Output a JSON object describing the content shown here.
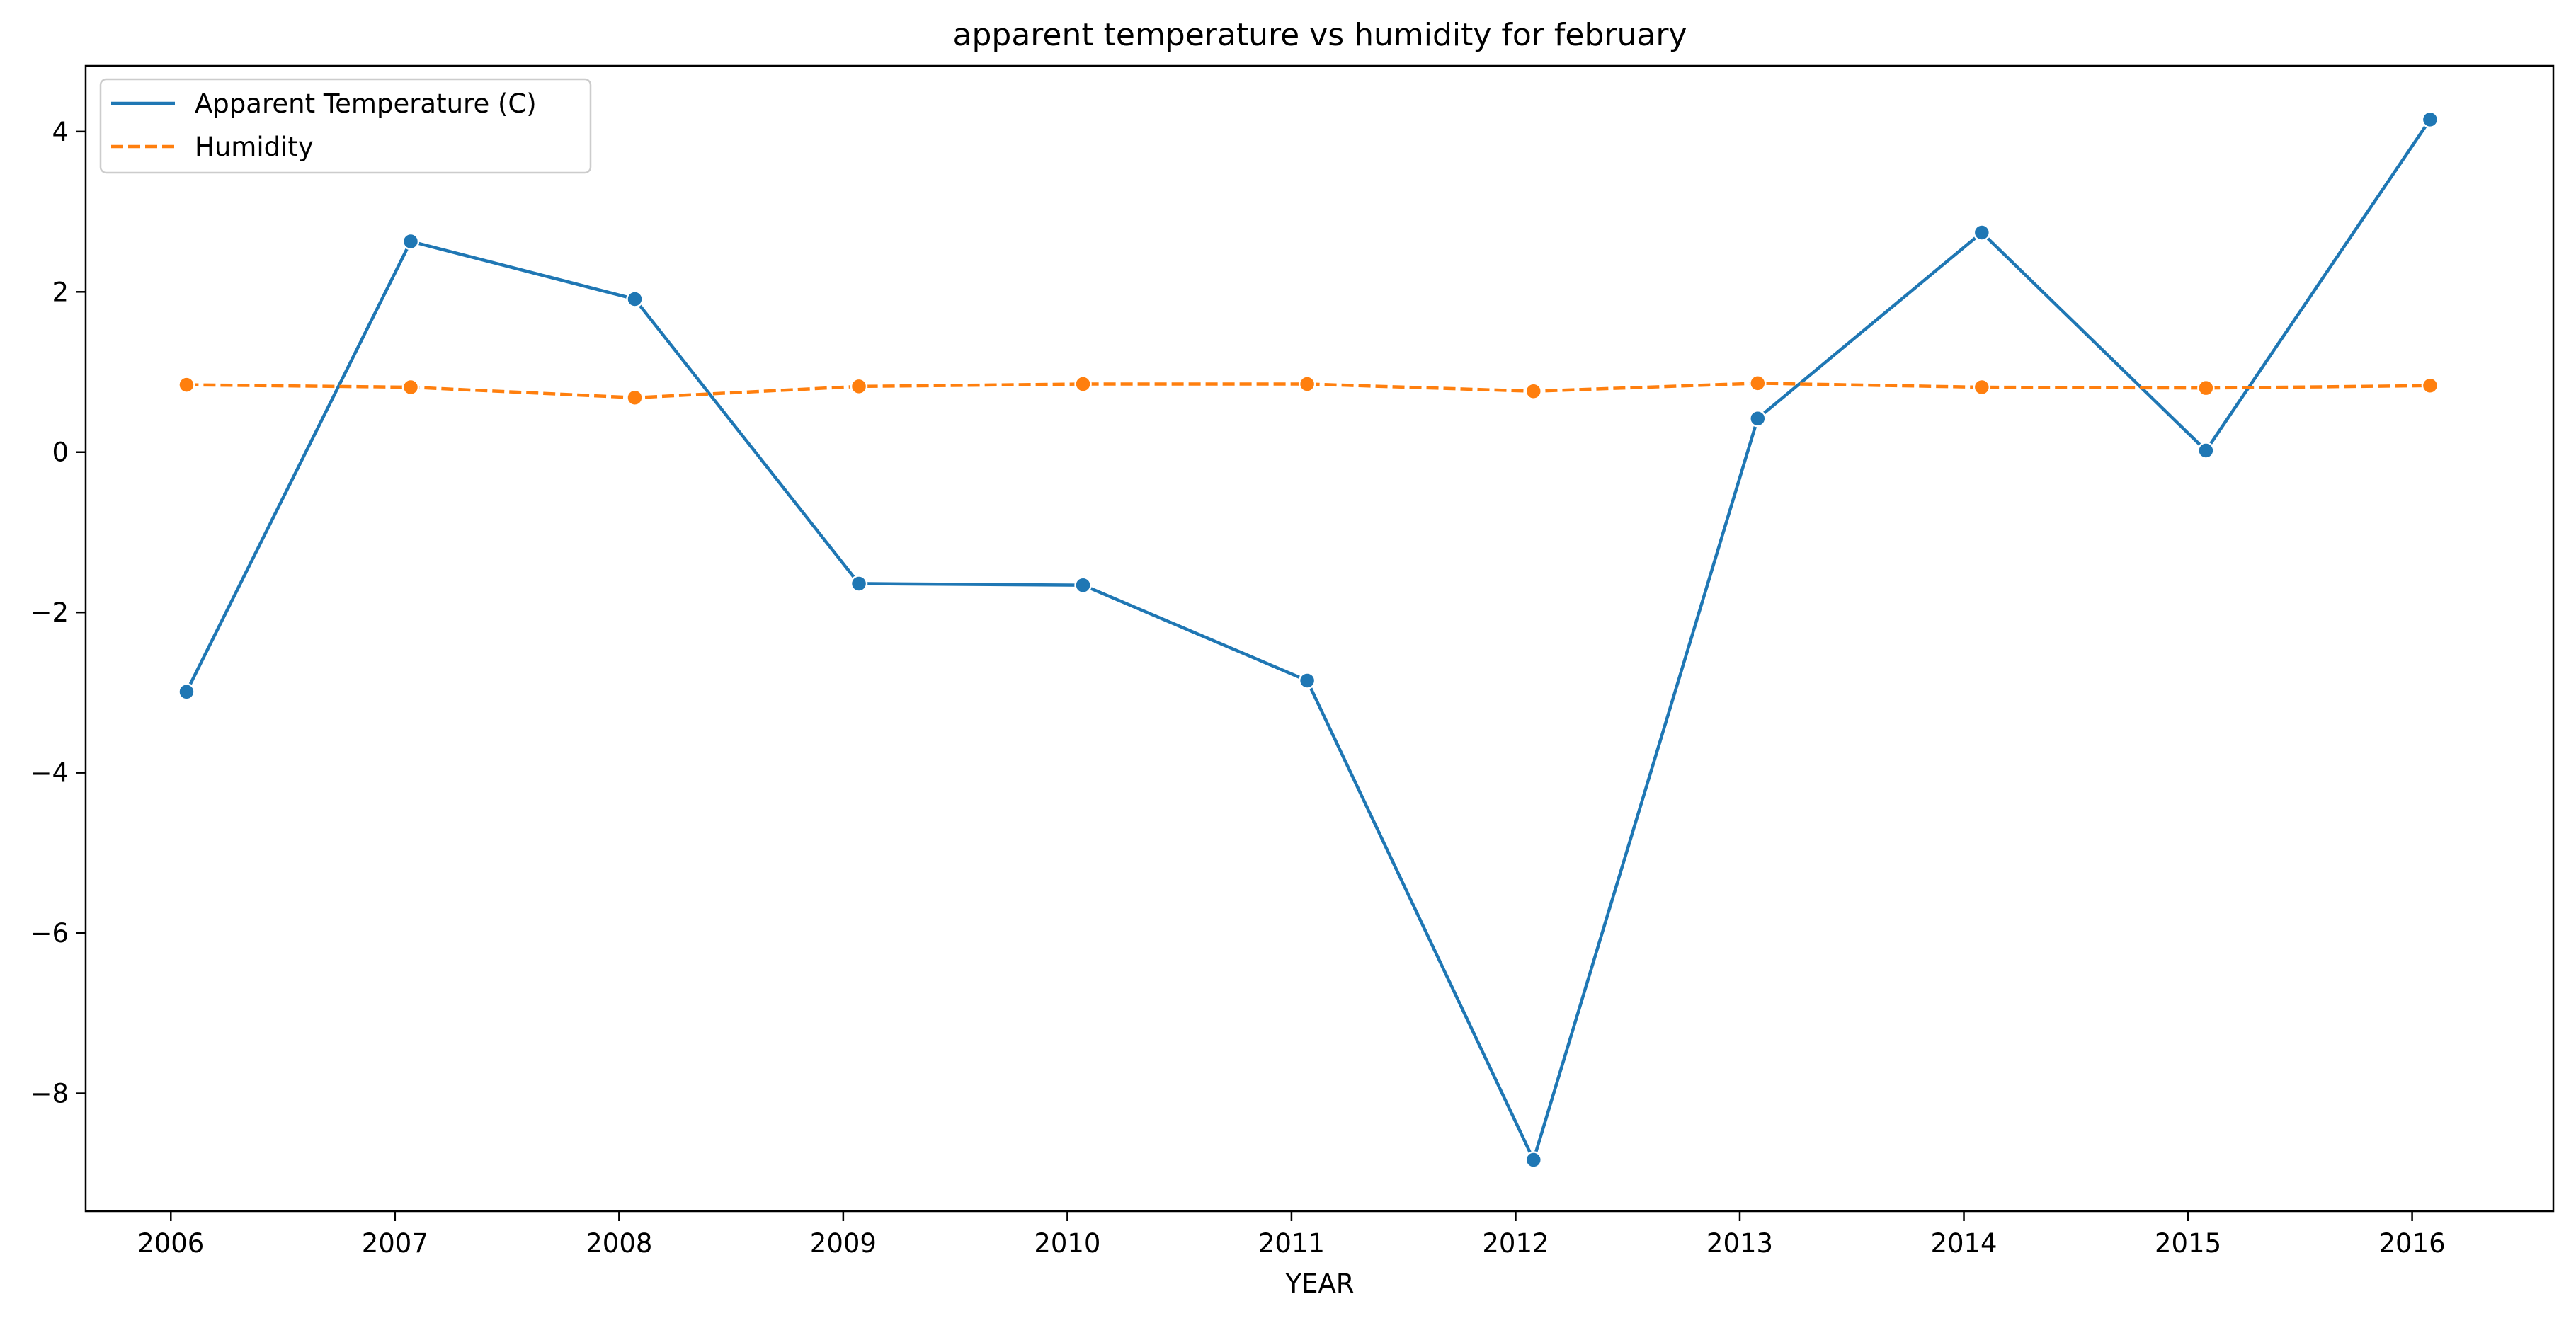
{
  "chart_data": {
    "type": "line",
    "title": "apparent temperature vs humidity for february",
    "xlabel": "YEAR",
    "ylabel": "",
    "x": [
      2006.07,
      2007.07,
      2008.07,
      2009.07,
      2010.07,
      2011.07,
      2012.08,
      2013.08,
      2014.08,
      2015.08,
      2016.08
    ],
    "xticks": [
      "2006",
      "2007",
      "2008",
      "2009",
      "2010",
      "2011",
      "2012",
      "2013",
      "2014",
      "2015",
      "2016"
    ],
    "xlim": [
      2005.62,
      2016.63
    ],
    "yticks": [
      "−8",
      "−6",
      "−4",
      "−2",
      "0",
      "2",
      "4"
    ],
    "ylim": [
      -9.47,
      4.82
    ],
    "grid": false,
    "legend_position": "upper-left",
    "series": [
      {
        "name": "Apparent Temperature (C)",
        "color": "#1f77b4",
        "line_style": "solid",
        "marker": "circle",
        "values": [
          -2.99,
          2.63,
          1.91,
          -1.64,
          -1.66,
          -2.85,
          -8.83,
          0.42,
          2.74,
          0.02,
          4.15
        ]
      },
      {
        "name": "Humidity",
        "color": "#ff7f0e",
        "line_style": "dashed",
        "marker": "circle",
        "values": [
          0.84,
          0.81,
          0.68,
          0.82,
          0.85,
          0.85,
          0.76,
          0.86,
          0.81,
          0.8,
          0.83
        ]
      }
    ]
  }
}
